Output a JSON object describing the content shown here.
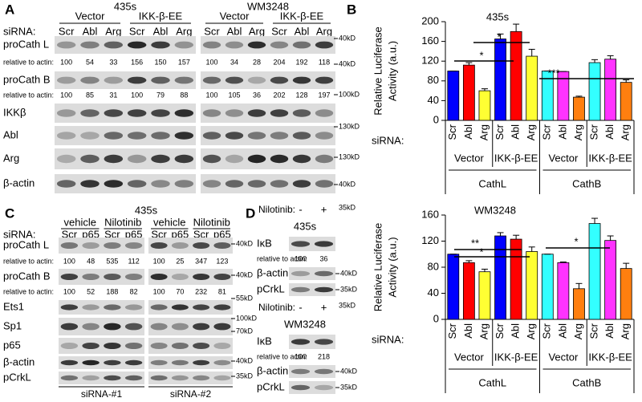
{
  "panel_a": {
    "letter": "A",
    "sirna_label": "siRNA:",
    "blots": [
      {
        "cell_line": "435s",
        "groups": [
          "Vector",
          "IKK-β-EE"
        ],
        "lanes": [
          "Scr",
          "Abl",
          "Arg",
          "Scr",
          "Abl",
          "Arg"
        ]
      },
      {
        "cell_line": "WM3248",
        "groups": [
          "Vector",
          "IKK-β-EE"
        ],
        "lanes": [
          "Scr",
          "Abl",
          "Arg",
          "Scr",
          "Abl",
          "Arg"
        ]
      }
    ],
    "rows": [
      {
        "label": "proCath L",
        "marker": "40kD"
      },
      {
        "label": "relative to actin:",
        "values": [
          [
            100,
            54,
            33,
            156,
            150,
            157
          ],
          [
            100,
            34,
            28,
            204,
            192,
            118
          ]
        ],
        "marker": "40kD"
      },
      {
        "label": "proCath B"
      },
      {
        "label": "relative to actin:",
        "values": [
          [
            100,
            85,
            31,
            100,
            79,
            88
          ],
          [
            100,
            105,
            36,
            202,
            128,
            197
          ]
        ],
        "marker": "100kD"
      },
      {
        "label": "IKKβ"
      },
      {
        "label": "Abl",
        "marker": "130kD"
      },
      {
        "label": "Arg",
        "marker": "130kD"
      },
      {
        "label": "β-actin",
        "marker": "40kD"
      }
    ]
  },
  "panel_b": {
    "letter": "B"
  },
  "panel_c": {
    "letter": "C",
    "cell_line": "435s",
    "sirna_label": "siRNA:",
    "blots": [
      {
        "groups": [
          "vehicle",
          "Nilotinib"
        ],
        "lanes": [
          "Scr",
          "p65",
          "Scr",
          "p65"
        ],
        "footer": "siRNA-#1"
      },
      {
        "groups": [
          "vehicle",
          "Nilotinib"
        ],
        "lanes": [
          "Scr",
          "p65",
          "Scr",
          "p65"
        ],
        "footer": "siRNA-#2"
      }
    ],
    "rows": [
      {
        "label": "proCath L",
        "marker": "40kD"
      },
      {
        "label": "relative to actin:",
        "values": [
          [
            100,
            48,
            535,
            112
          ],
          [
            100,
            25,
            347,
            123
          ]
        ]
      },
      {
        "label": "proCath B",
        "marker": "40kD"
      },
      {
        "label": "relative to actin:",
        "values": [
          [
            100,
            52,
            188,
            82
          ],
          [
            100,
            70,
            232,
            81
          ]
        ]
      },
      {
        "label": "Ets1",
        "marker": "55kD"
      },
      {
        "label": "Sp1",
        "marker": "100kD"
      },
      {
        "label": "p65",
        "marker": "70kD"
      },
      {
        "label": "β-actin",
        "marker": "40kD"
      },
      {
        "label": "pCrkL",
        "marker": "35kD"
      }
    ]
  },
  "panel_d": {
    "letter": "D",
    "sections": [
      {
        "treatment_label": "Nilotinib:",
        "conditions": [
          "-",
          "+"
        ],
        "top_marker": "35kD",
        "cell_line": "435s",
        "rows": [
          {
            "label": "IκB"
          },
          {
            "label": "relative to actin:",
            "values": [
              100,
              36
            ]
          },
          {
            "label": "β-actin",
            "marker": "40kD"
          },
          {
            "label": "pCrkL",
            "marker": "35kD"
          }
        ]
      },
      {
        "treatment_label": "Nilotinib:",
        "conditions": [
          "-",
          "+"
        ],
        "top_marker": "35kD",
        "cell_line": "WM3248",
        "rows": [
          {
            "label": "IκB"
          },
          {
            "label": "relative to actin:",
            "values": [
              100,
              218
            ]
          },
          {
            "label": "β-actin",
            "marker": "40kD"
          },
          {
            "label": "pCrkL",
            "marker": "35kD"
          }
        ]
      }
    ]
  },
  "chart_data": [
    {
      "type": "bar",
      "title": "435s",
      "ylabel_lines": [
        "Relative Luciferase",
        "Activity (a.u.)"
      ],
      "xlabel": "siRNA:",
      "categories": [
        "Scr",
        "Abl",
        "Arg",
        "Scr",
        "Abl",
        "Arg",
        "Scr",
        "Abl",
        "Arg",
        "Scr",
        "Abl",
        "Arg"
      ],
      "values": [
        100,
        112,
        60,
        165,
        180,
        130,
        100,
        99,
        47,
        117,
        124,
        77
      ],
      "errors": [
        0,
        5,
        4,
        10,
        15,
        14,
        0,
        0,
        2,
        6,
        7,
        5
      ],
      "colors": [
        "#0000ff",
        "#ff0000",
        "#ffff33",
        "#0000ff",
        "#ff0000",
        "#ffff33",
        "#33ffff",
        "#ff33ff",
        "#ff7f0f",
        "#33ffff",
        "#ff33ff",
        "#ff7f0f"
      ],
      "subgroups": [
        "Vector",
        "IKK-β-EE",
        "Vector",
        "IKK-β-EE"
      ],
      "groups": [
        "CathL",
        "CathB"
      ],
      "annotations": [
        "*",
        "*",
        "***"
      ],
      "ylim": [
        0,
        200
      ],
      "yticks": [
        0,
        40,
        80,
        120,
        160,
        200
      ]
    },
    {
      "type": "bar",
      "title": "WM3248",
      "ylabel_lines": [
        "Relative Luciferase",
        "Activity (a.u.)"
      ],
      "xlabel": "siRNA:",
      "categories": [
        "Scr",
        "Abl",
        "Arg",
        "Scr",
        "Abl",
        "Arg",
        "Scr",
        "Abl",
        "Arg",
        "Scr",
        "Abl",
        "Arg"
      ],
      "values": [
        100,
        87,
        73,
        128,
        123,
        104,
        100,
        87,
        47,
        147,
        121,
        78
      ],
      "errors": [
        0,
        3,
        4,
        5,
        6,
        7,
        0,
        1,
        8,
        8,
        7,
        8
      ],
      "colors": [
        "#0000ff",
        "#ff0000",
        "#ffff33",
        "#0000ff",
        "#ff0000",
        "#ffff33",
        "#33ffff",
        "#ff33ff",
        "#ff7f0f",
        "#33ffff",
        "#ff33ff",
        "#ff7f0f"
      ],
      "subgroups": [
        "Vector",
        "IKK-β-EE",
        "Vector",
        "IKK-β-EE"
      ],
      "groups": [
        "CathL",
        "CathB"
      ],
      "annotations": [
        "**",
        "*",
        "*"
      ],
      "ylim": [
        0,
        160
      ],
      "yticks": [
        0,
        40,
        80,
        120,
        160
      ]
    }
  ]
}
